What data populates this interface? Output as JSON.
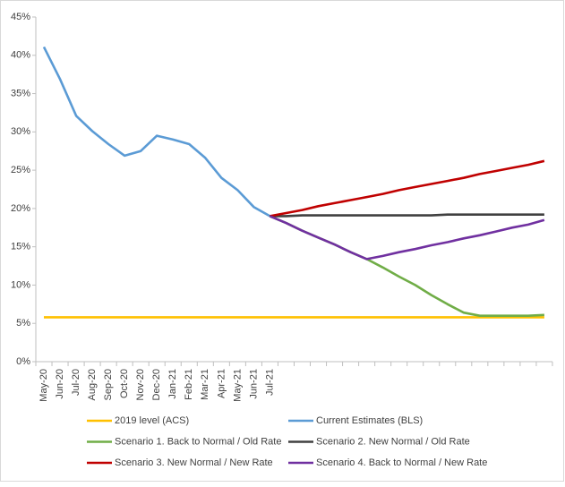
{
  "chart_data": {
    "type": "line",
    "categories": [
      "May-20",
      "Jun-20",
      "Jul-20",
      "Aug-20",
      "Sep-20",
      "Oct-20",
      "Nov-20",
      "Dec-20",
      "Jan-21",
      "Feb-21",
      "Mar-21",
      "Apr-21",
      "May-21",
      "Jun-21",
      "Jul-21",
      null,
      null,
      null,
      null,
      null,
      null,
      null,
      null,
      null,
      null,
      null,
      null,
      null,
      null,
      null,
      null,
      null
    ],
    "ylim": [
      0,
      45
    ],
    "yticks": [
      {
        "value": 0,
        "label": "0%"
      },
      {
        "value": 5,
        "label": "5%"
      },
      {
        "value": 10,
        "label": "10%"
      },
      {
        "value": 15,
        "label": "15%"
      },
      {
        "value": 20,
        "label": "20%"
      },
      {
        "value": 25,
        "label": "25%"
      },
      {
        "value": 30,
        "label": "30%"
      },
      {
        "value": 35,
        "label": "35%"
      },
      {
        "value": 40,
        "label": "40%"
      },
      {
        "value": 45,
        "label": "45%"
      }
    ],
    "grid": false,
    "legend": "bottom",
    "series": [
      {
        "name": "2019 level (ACS)",
        "color": "#ffc000",
        "values": [
          5.8,
          5.8,
          5.8,
          5.8,
          5.8,
          5.8,
          5.8,
          5.8,
          5.8,
          5.8,
          5.8,
          5.8,
          5.8,
          5.8,
          5.8,
          5.8,
          5.8,
          5.8,
          5.8,
          5.8,
          5.8,
          5.8,
          5.8,
          5.8,
          5.8,
          5.8,
          5.8,
          5.8,
          5.8,
          5.8,
          5.8,
          5.8
        ]
      },
      {
        "name": "Current Estimates (BLS)",
        "color": "#5b9bd5",
        "values": [
          41.1,
          36.9,
          32.1,
          30.1,
          28.4,
          26.9,
          27.5,
          29.5,
          29.0,
          28.4,
          26.6,
          24.0,
          22.4,
          20.2,
          19.0,
          null,
          null,
          null,
          null,
          null,
          null,
          null,
          null,
          null,
          null,
          null,
          null,
          null,
          null,
          null,
          null,
          null
        ]
      },
      {
        "name": "Scenario 1. Back to Normal / Old Rate",
        "color": "#70ad47",
        "values": [
          null,
          null,
          null,
          null,
          null,
          null,
          null,
          null,
          null,
          null,
          null,
          null,
          null,
          null,
          19.0,
          18.1,
          17.1,
          16.2,
          15.3,
          14.3,
          13.4,
          12.3,
          11.1,
          10.0,
          8.7,
          7.5,
          6.4,
          6.0,
          6.0,
          6.0,
          6.0,
          6.1
        ]
      },
      {
        "name": "Scenario 2. New Normal / Old Rate",
        "color": "#404040",
        "values": [
          null,
          null,
          null,
          null,
          null,
          null,
          null,
          null,
          null,
          null,
          null,
          null,
          null,
          null,
          19.0,
          19.0,
          19.1,
          19.1,
          19.1,
          19.1,
          19.1,
          19.1,
          19.1,
          19.1,
          19.1,
          19.2,
          19.2,
          19.2,
          19.2,
          19.2,
          19.2,
          19.2
        ]
      },
      {
        "name": "Scenario 3. New Normal / New Rate",
        "color": "#c00000",
        "values": [
          null,
          null,
          null,
          null,
          null,
          null,
          null,
          null,
          null,
          null,
          null,
          null,
          null,
          null,
          19.0,
          19.4,
          19.8,
          20.3,
          20.7,
          21.1,
          21.5,
          21.9,
          22.4,
          22.8,
          23.2,
          23.6,
          24.0,
          24.5,
          24.9,
          25.3,
          25.7,
          26.2
        ]
      },
      {
        "name": "Scenario 4. Back to Normal / New Rate",
        "color": "#7030a0",
        "values": [
          null,
          null,
          null,
          null,
          null,
          null,
          null,
          null,
          null,
          null,
          null,
          null,
          null,
          null,
          19.0,
          18.1,
          17.1,
          16.2,
          15.3,
          14.3,
          13.4,
          13.8,
          14.3,
          14.7,
          15.2,
          15.6,
          16.1,
          16.5,
          17.0,
          17.5,
          17.9,
          18.5
        ]
      }
    ]
  }
}
